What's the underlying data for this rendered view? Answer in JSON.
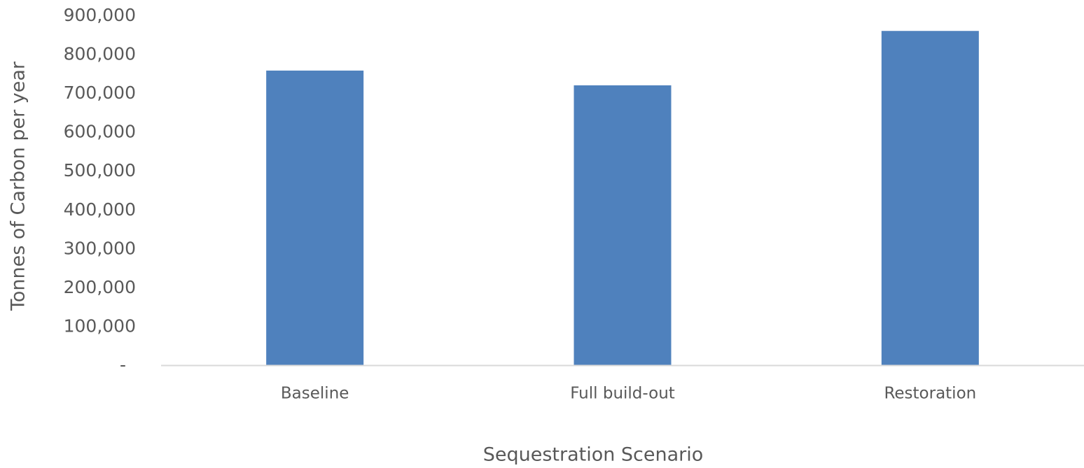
{
  "chart_data": {
    "type": "bar",
    "title": "",
    "xlabel": "Sequestration Scenario",
    "ylabel": "Tonnes of Carbon per year",
    "categories": [
      "Baseline",
      "Full build-out",
      "Restoration"
    ],
    "values": [
      758000,
      720000,
      860000
    ],
    "ylim": [
      0,
      900000
    ],
    "yticks": [
      0,
      100000,
      200000,
      300000,
      400000,
      500000,
      600000,
      700000,
      800000,
      900000
    ],
    "ytick_labels": [
      "-",
      "100,000",
      "200,000",
      "300,000",
      "400,000",
      "500,000",
      "600,000",
      "700,000",
      "800,000",
      "900,000"
    ],
    "grid": false,
    "legend": "none",
    "bar_color": "#4f81bd",
    "axis_color": "#d9d9d9"
  }
}
